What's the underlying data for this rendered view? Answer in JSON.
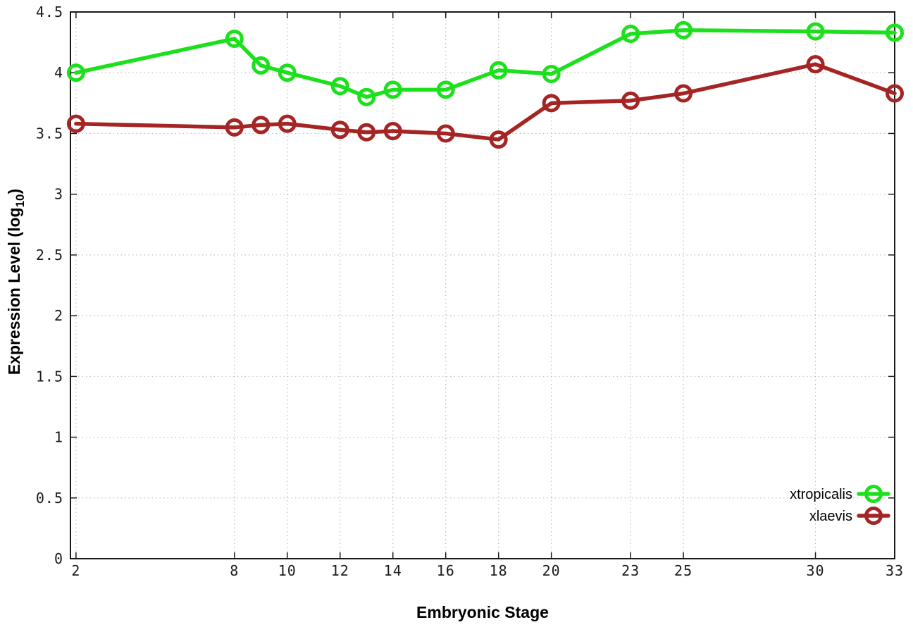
{
  "chart_data": {
    "type": "line",
    "title": "",
    "xlabel": "Embryonic Stage",
    "ylabel": {
      "text": "Expression Level (log10)",
      "base": "Expression Level (log",
      "sub": "10",
      "suffix": ")"
    },
    "x": [
      2,
      8,
      9,
      10,
      12,
      13,
      14,
      16,
      18,
      20,
      23,
      25,
      30,
      33
    ],
    "xticks": [
      2,
      8,
      10,
      12,
      14,
      16,
      18,
      20,
      23,
      25,
      30,
      33
    ],
    "yticks": [
      0,
      0.5,
      1,
      1.5,
      2,
      2.5,
      3,
      3.5,
      4,
      4.5
    ],
    "xlim": [
      1.79,
      33
    ],
    "ylim": [
      0,
      4.5
    ],
    "grid": true,
    "grid_style": "dotted",
    "legend_position": "bottom-right",
    "marker": "open-circle",
    "series": [
      {
        "name": "xtropicalis",
        "color": "#1ce01c",
        "values": [
          4.0,
          4.28,
          4.06,
          4.0,
          3.89,
          3.8,
          3.86,
          3.86,
          4.02,
          3.99,
          4.32,
          4.35,
          4.34,
          4.33
        ]
      },
      {
        "name": "xlaevis",
        "color": "#a52525",
        "values": [
          3.58,
          3.55,
          3.57,
          3.58,
          3.53,
          3.51,
          3.52,
          3.5,
          3.45,
          3.75,
          3.77,
          3.83,
          4.07,
          3.83
        ]
      }
    ]
  }
}
